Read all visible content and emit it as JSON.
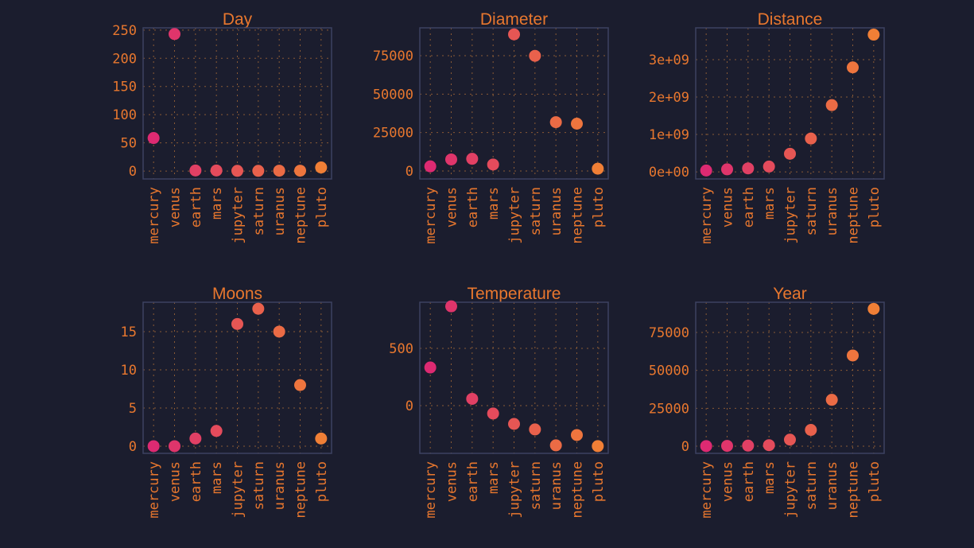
{
  "chart_data": [
    {
      "type": "scatter",
      "title": "Day",
      "categories": [
        "mercury",
        "venus",
        "earth",
        "mars",
        "jupyter",
        "saturn",
        "uranus",
        "neptune",
        "pluto"
      ],
      "values": [
        58.6,
        243,
        1,
        1,
        0.4,
        0.4,
        0.7,
        0.7,
        6.4
      ],
      "colors": [
        "#dd2a72",
        "#df356b",
        "#e14064",
        "#e44b5c",
        "#e65654",
        "#e9614c",
        "#eb6b45",
        "#ee753e",
        "#f07f36"
      ],
      "ylim": [
        -14,
        254
      ],
      "yticks": [
        0,
        50,
        100,
        150,
        200,
        250
      ],
      "grid": true
    },
    {
      "type": "scatter",
      "title": "Diameter",
      "categories": [
        "mercury",
        "venus",
        "earth",
        "mars",
        "jupyter",
        "saturn",
        "uranus",
        "neptune",
        "pluto"
      ],
      "values": [
        3032,
        7521,
        7926,
        4222,
        88846,
        74898,
        31763,
        30778,
        1485
      ],
      "colors": [
        "#dd2a72",
        "#df356b",
        "#e14064",
        "#e44b5c",
        "#e65654",
        "#e9614c",
        "#eb6b45",
        "#ee753e",
        "#f07f36"
      ],
      "ylim": [
        -5170,
        93100
      ],
      "yticks": [
        0,
        25000,
        50000,
        75000
      ],
      "grid": true
    },
    {
      "type": "scatter",
      "title": "Distance",
      "categories": [
        "mercury",
        "venus",
        "earth",
        "mars",
        "jupyter",
        "saturn",
        "uranus",
        "neptune",
        "pluto"
      ],
      "values": [
        36000000,
        67200000,
        93000000,
        141600000,
        483800000,
        890800000,
        1784000000,
        2793000000,
        3670000000
      ],
      "colors": [
        "#dd2a72",
        "#df356b",
        "#e14064",
        "#e44b5c",
        "#e65654",
        "#e9614c",
        "#eb6b45",
        "#ee753e",
        "#f07f36"
      ],
      "ylim": [
        -190000000,
        3851000000
      ],
      "yticks": [
        {
          "value": 0,
          "label": "0e+00"
        },
        {
          "value": 1000000000,
          "label": "1e+09"
        },
        {
          "value": 2000000000,
          "label": "2e+09"
        },
        {
          "value": 3000000000,
          "label": "3e+09"
        }
      ],
      "grid": true
    },
    {
      "type": "scatter",
      "title": "Moons",
      "categories": [
        "mercury",
        "venus",
        "earth",
        "mars",
        "jupyter",
        "saturn",
        "uranus",
        "neptune",
        "pluto"
      ],
      "values": [
        0,
        0,
        1,
        2,
        16,
        18,
        15,
        8,
        1
      ],
      "colors": [
        "#dd2a72",
        "#df356b",
        "#e14064",
        "#e44b5c",
        "#e65654",
        "#e9614c",
        "#eb6b45",
        "#ee753e",
        "#f07f36"
      ],
      "ylim": [
        -0.94,
        18.85
      ],
      "yticks": [
        0,
        5,
        10,
        15
      ],
      "grid": true
    },
    {
      "type": "scatter",
      "title": "Temperature",
      "categories": [
        "mercury",
        "venus",
        "earth",
        "mars",
        "jupyter",
        "saturn",
        "uranus",
        "neptune",
        "pluto"
      ],
      "values": [
        333,
        867,
        59,
        -69,
        -160,
        -208,
        -347,
        -257,
        -354
      ],
      "colors": [
        "#dd2a72",
        "#df356b",
        "#e14064",
        "#e44b5c",
        "#e65654",
        "#e9614c",
        "#eb6b45",
        "#ee753e",
        "#f07f36"
      ],
      "ylim": [
        -417,
        903
      ],
      "yticks": [
        0,
        500
      ],
      "grid": true
    },
    {
      "type": "scatter",
      "title": "Year",
      "categories": [
        "mercury",
        "venus",
        "earth",
        "mars",
        "jupyter",
        "saturn",
        "uranus",
        "neptune",
        "pluto"
      ],
      "values": [
        88,
        225,
        365,
        687,
        4331,
        10747,
        30589,
        59800,
        90560
      ],
      "colors": [
        "#dd2a72",
        "#df356b",
        "#e14064",
        "#e44b5c",
        "#e65654",
        "#e9614c",
        "#eb6b45",
        "#ee753e",
        "#f07f36"
      ],
      "ylim": [
        -4720,
        94930
      ],
      "yticks": [
        0,
        25000,
        50000,
        75000
      ],
      "grid": true
    }
  ]
}
